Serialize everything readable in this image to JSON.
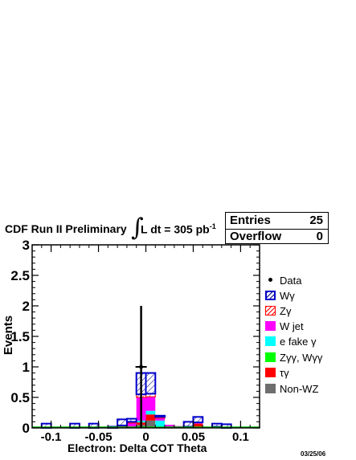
{
  "header": {
    "run_label": "CDF Run II Preliminary",
    "lumi_prefix": "L dt = 305 pb",
    "lumi_exp": "-1"
  },
  "stats": {
    "entries_label": "Entries",
    "entries_value": "25",
    "overflow_label": "Overflow",
    "overflow_value": "0"
  },
  "footer_date": "03/25/06",
  "legend": {
    "items": [
      {
        "label": "Data",
        "style": "marker",
        "color": "#000000"
      },
      {
        "label": "Wγ",
        "style": "hatch",
        "color": "#0000cc"
      },
      {
        "label": "Zγ",
        "style": "hatch",
        "color": "#ff0000"
      },
      {
        "label": "W jet",
        "style": "fill",
        "color": "#ff00ff"
      },
      {
        "label": "e fake γ",
        "style": "fill",
        "color": "#00ffff"
      },
      {
        "label": "Zγγ, Wγγ",
        "style": "fill",
        "color": "#00ff00"
      },
      {
        "label": "τγ",
        "style": "fill",
        "color": "#ff0000"
      },
      {
        "label": "Non-WZ",
        "style": "fill",
        "color": "#6e6e6e"
      }
    ]
  },
  "chart_data": {
    "type": "bar",
    "xlabel": "Electron: Delta COT Theta",
    "ylabel": "Events",
    "xlim": [
      -0.12,
      0.12
    ],
    "ylim": [
      0,
      3
    ],
    "x_ticks": [
      -0.1,
      -0.05,
      0,
      0.05,
      0.1
    ],
    "x_tick_labels": [
      "-0.1",
      "-0.05",
      "0",
      "0.05",
      "0.1"
    ],
    "y_ticks": [
      0,
      0.5,
      1,
      1.5,
      2,
      2.5,
      3
    ],
    "y_tick_labels": [
      "0",
      "0.5",
      "1",
      "1.5",
      "2",
      "2.5",
      "3"
    ],
    "bin_edges": [
      -0.12,
      -0.11,
      -0.1,
      -0.09,
      -0.08,
      -0.07,
      -0.06,
      -0.05,
      -0.04,
      -0.03,
      -0.02,
      -0.01,
      0.0,
      0.01,
      0.02,
      0.03,
      0.04,
      0.05,
      0.06,
      0.07,
      0.08,
      0.09,
      0.1,
      0.11,
      0.12
    ],
    "stack": [
      {
        "name": "Non-WZ",
        "color": "#6e6e6e",
        "values": [
          0,
          0,
          0,
          0,
          0,
          0,
          0,
          0,
          0,
          0,
          0,
          0.05,
          0.12,
          0,
          0,
          0,
          0,
          0,
          0,
          0,
          0,
          0,
          0,
          0
        ]
      },
      {
        "name": "τγ",
        "color": "#ff0000",
        "values": [
          0,
          0,
          0,
          0,
          0,
          0,
          0,
          0,
          0,
          0,
          0,
          0.04,
          0.1,
          0.02,
          0,
          0,
          0,
          0.07,
          0,
          0,
          0,
          0,
          0,
          0
        ]
      },
      {
        "name": "Zγγ, Wγγ",
        "color": "#00ff00",
        "values": [
          0,
          0,
          0,
          0,
          0,
          0,
          0,
          0,
          0,
          0,
          0,
          0,
          0,
          0,
          0,
          0,
          0,
          0,
          0,
          0,
          0,
          0,
          0,
          0
        ]
      },
      {
        "name": "e fake γ",
        "color": "#00ffff",
        "values": [
          0,
          0,
          0,
          0,
          0,
          0,
          0,
          0,
          0,
          0,
          0,
          0.03,
          0.06,
          0.1,
          0,
          0,
          0,
          0,
          0,
          0,
          0,
          0,
          0,
          0
        ]
      },
      {
        "name": "W jet",
        "color": "#ff00ff",
        "values": [
          0,
          0,
          0,
          0,
          0,
          0,
          0,
          0,
          0,
          0.03,
          0.08,
          0.38,
          0.23,
          0.04,
          0.05,
          0.03,
          0.02,
          0.02,
          0,
          0.02,
          0,
          0,
          0,
          0
        ]
      },
      {
        "name": "Zγ",
        "color": "#ff0000",
        "values": [
          0,
          0,
          0,
          0,
          0,
          0,
          0,
          0,
          0,
          0.01,
          0.02,
          0.05,
          0.05,
          0.02,
          0,
          0,
          0,
          0,
          0,
          0,
          0,
          0,
          0,
          0
        ]
      },
      {
        "name": "Wγ",
        "color": "#0000cc",
        "values": [
          0,
          0.07,
          0,
          0,
          0.07,
          0,
          0.07,
          0,
          0.02,
          0.1,
          0.05,
          0.35,
          0.34,
          0.02,
          0,
          0,
          0.08,
          0.09,
          0,
          0.05,
          0.06,
          0,
          0,
          0
        ]
      }
    ],
    "data_points": [
      {
        "x": -0.005,
        "y": 1,
        "err": 1
      }
    ]
  }
}
